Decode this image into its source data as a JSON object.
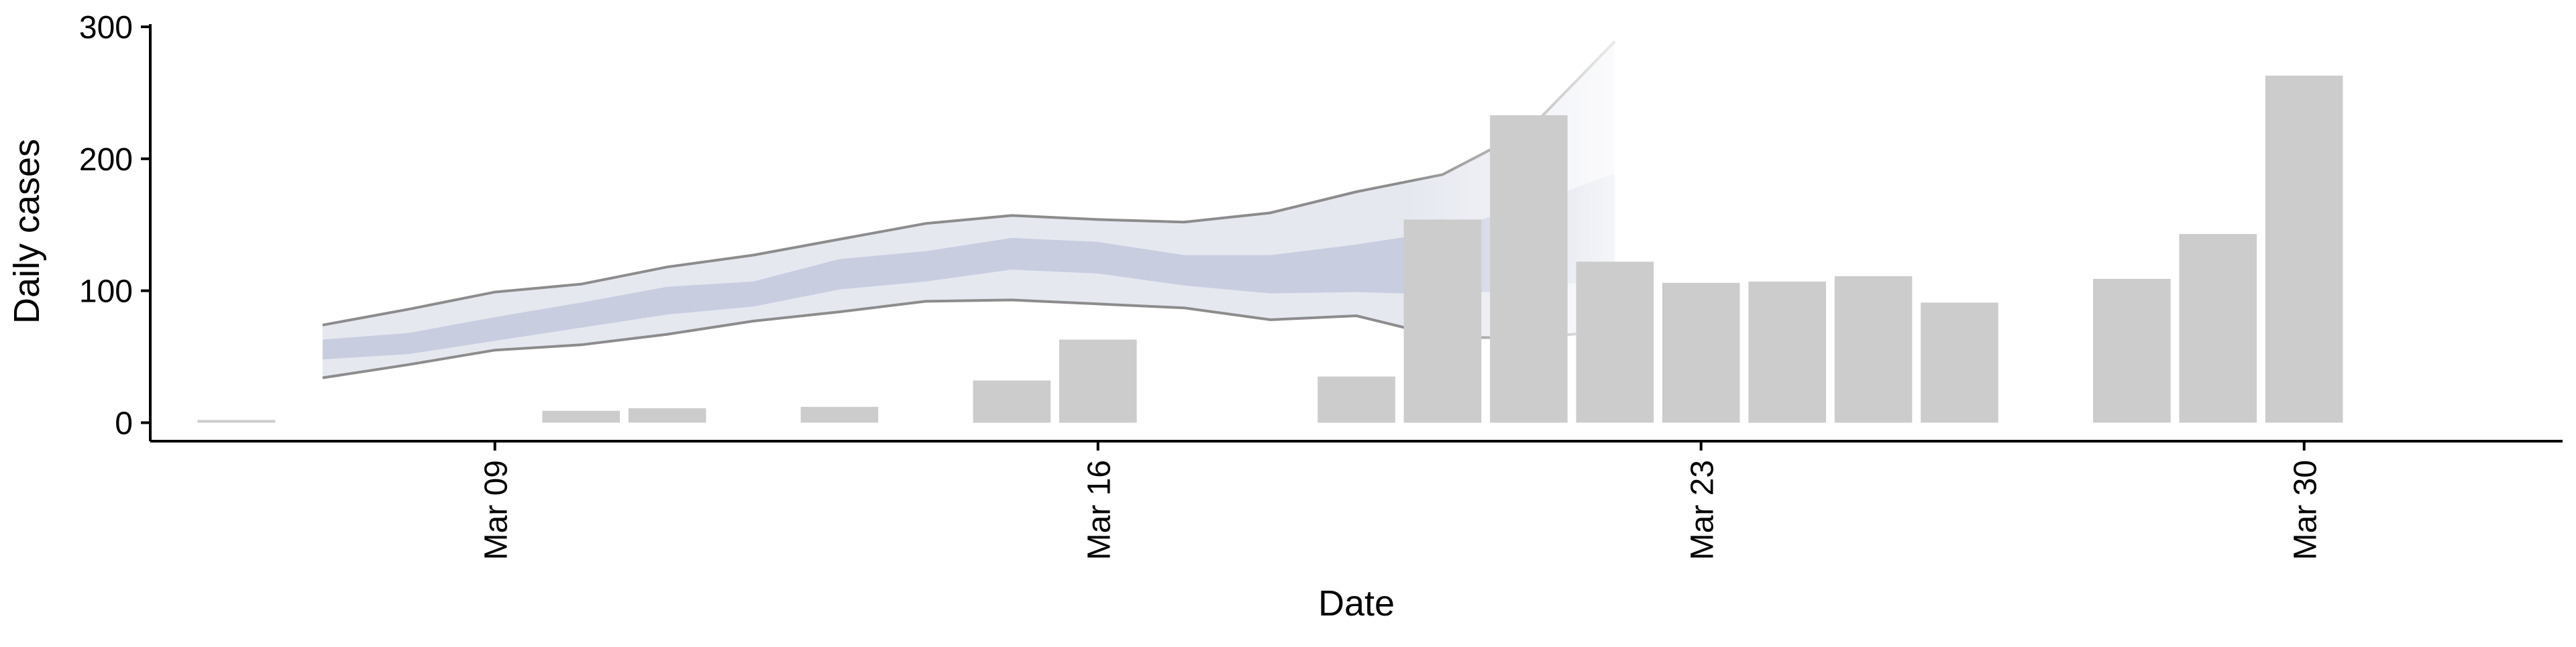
{
  "chart_data": {
    "type": "bar",
    "title": "",
    "xlabel": "Date",
    "ylabel": "Daily cases",
    "x_ticks": [
      {
        "date": "2020-03-09",
        "label": "Mar 09"
      },
      {
        "date": "2020-03-16",
        "label": "Mar 16"
      },
      {
        "date": "2020-03-23",
        "label": "Mar 23"
      },
      {
        "date": "2020-03-30",
        "label": "Mar 30"
      }
    ],
    "y_ticks": [
      0,
      100,
      200,
      300
    ],
    "ylim": [
      -14,
      300
    ],
    "xlim": [
      "2020-03-05",
      "2020-04-02"
    ],
    "grid": false,
    "colors": {
      "bars": "#cccccc",
      "band_outer": "#e6e8f0",
      "band_inner": "#c8cde0",
      "band_lines": "#8c8c8c"
    },
    "bars": [
      {
        "date": "2020-03-06",
        "value": 1
      },
      {
        "date": "2020-03-10",
        "value": 9
      },
      {
        "date": "2020-03-11",
        "value": 11
      },
      {
        "date": "2020-03-13",
        "value": 12
      },
      {
        "date": "2020-03-15",
        "value": 32
      },
      {
        "date": "2020-03-16",
        "value": 63
      },
      {
        "date": "2020-03-19",
        "value": 35
      },
      {
        "date": "2020-03-20",
        "value": 154
      },
      {
        "date": "2020-03-21",
        "value": 233
      },
      {
        "date": "2020-03-22",
        "value": 122
      },
      {
        "date": "2020-03-23",
        "value": 106
      },
      {
        "date": "2020-03-24",
        "value": 107
      },
      {
        "date": "2020-03-25",
        "value": 111
      },
      {
        "date": "2020-03-26",
        "value": 91
      },
      {
        "date": "2020-03-28",
        "value": 109
      },
      {
        "date": "2020-03-29",
        "value": 143
      },
      {
        "date": "2020-03-30",
        "value": 263
      }
    ],
    "band": [
      {
        "date": "2020-03-07",
        "lower": 34,
        "upper": 74,
        "inner_lower": 48,
        "inner_upper": 63
      },
      {
        "date": "2020-03-08",
        "lower": 44,
        "upper": 86,
        "inner_lower": 52,
        "inner_upper": 68
      },
      {
        "date": "2020-03-09",
        "lower": 55,
        "upper": 99,
        "inner_lower": 62,
        "inner_upper": 80
      },
      {
        "date": "2020-03-10",
        "lower": 59,
        "upper": 105,
        "inner_lower": 72,
        "inner_upper": 91
      },
      {
        "date": "2020-03-11",
        "lower": 67,
        "upper": 118,
        "inner_lower": 82,
        "inner_upper": 103
      },
      {
        "date": "2020-03-12",
        "lower": 77,
        "upper": 127,
        "inner_lower": 88,
        "inner_upper": 107
      },
      {
        "date": "2020-03-13",
        "lower": 84,
        "upper": 139,
        "inner_lower": 101,
        "inner_upper": 124
      },
      {
        "date": "2020-03-14",
        "lower": 92,
        "upper": 151,
        "inner_lower": 107,
        "inner_upper": 130
      },
      {
        "date": "2020-03-15",
        "lower": 93,
        "upper": 157,
        "inner_lower": 116,
        "inner_upper": 140
      },
      {
        "date": "2020-03-16",
        "lower": 90,
        "upper": 154,
        "inner_lower": 113,
        "inner_upper": 137
      },
      {
        "date": "2020-03-17",
        "lower": 87,
        "upper": 152,
        "inner_lower": 104,
        "inner_upper": 127
      },
      {
        "date": "2020-03-18",
        "lower": 78,
        "upper": 159,
        "inner_lower": 98,
        "inner_upper": 127
      },
      {
        "date": "2020-03-19",
        "lower": 81,
        "upper": 175,
        "inner_lower": 99,
        "inner_upper": 135
      },
      {
        "date": "2020-03-20",
        "lower": 65,
        "upper": 188,
        "inner_lower": 97,
        "inner_upper": 145
      },
      {
        "date": "2020-03-21",
        "lower": 64,
        "upper": 222,
        "inner_lower": 101,
        "inner_upper": 165
      },
      {
        "date": "2020-03-22",
        "lower": 70,
        "upper": 289,
        "inner_lower": 110,
        "inner_upper": 189
      }
    ]
  }
}
